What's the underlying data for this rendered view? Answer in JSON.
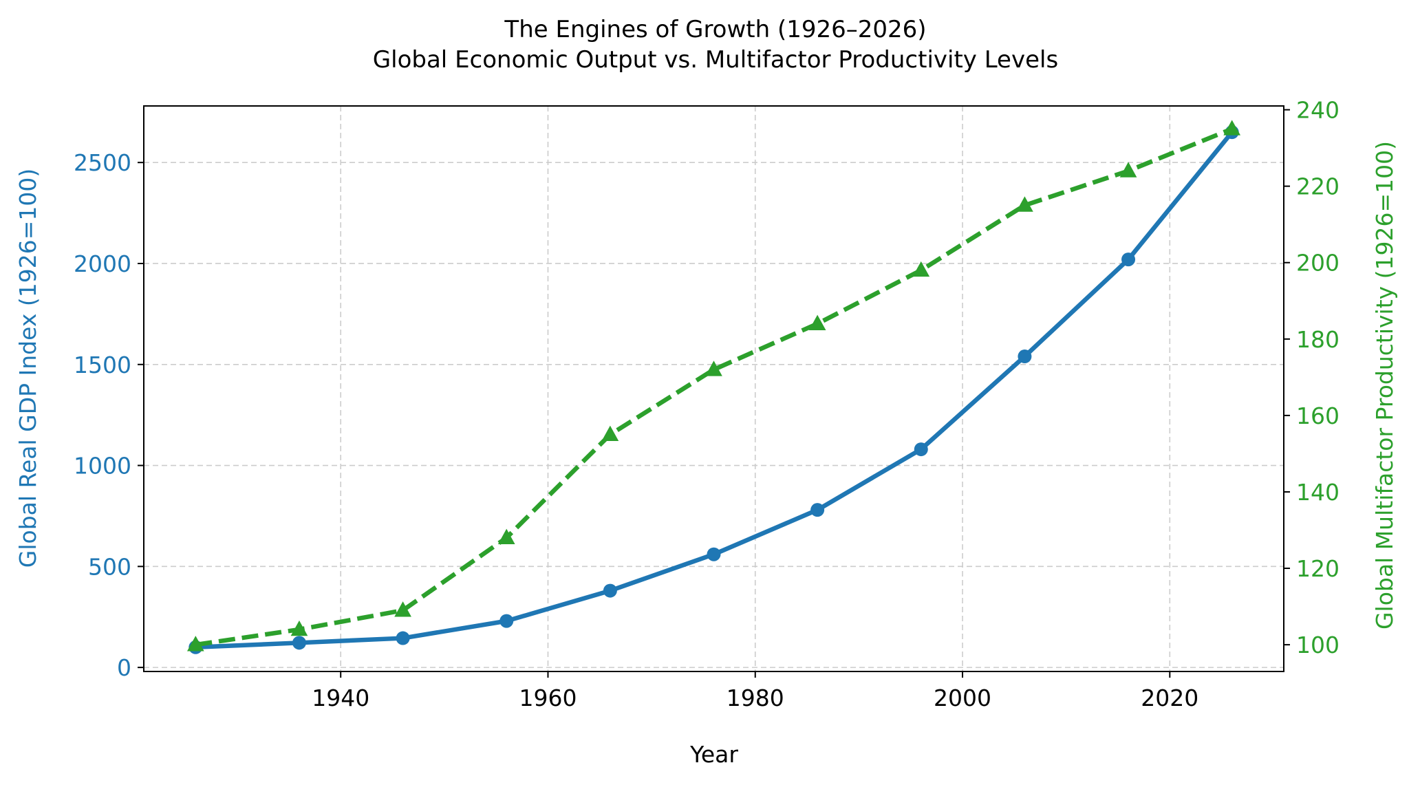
{
  "chart_data": {
    "type": "line",
    "title": "The Engines of Growth (1926–2026)",
    "subtitle": "Global Economic Output vs. Multifactor Productivity Levels",
    "xlabel": "Year",
    "ylabel_left": "Global Real GDP Index (1926=100)",
    "ylabel_right": "Global Multifactor Productivity (1926=100)",
    "x": [
      1926,
      1936,
      1946,
      1956,
      1966,
      1976,
      1986,
      1996,
      2006,
      2016,
      2026
    ],
    "xlim": [
      1921,
      2031
    ],
    "xticks": [
      1940,
      1960,
      1980,
      2000,
      2020
    ],
    "ylim_left": [
      -20,
      2780
    ],
    "yticks_left": [
      0,
      500,
      1000,
      1500,
      2000,
      2500
    ],
    "ylim_right": [
      93,
      241
    ],
    "yticks_right": [
      100,
      120,
      140,
      160,
      180,
      200,
      220,
      240
    ],
    "grid": true,
    "series": [
      {
        "axis": "left",
        "color": "#1f77b4",
        "line_style": "solid",
        "marker": "circle",
        "values": [
          100,
          122,
          145,
          230,
          380,
          560,
          780,
          1080,
          1540,
          2020,
          2650
        ]
      },
      {
        "axis": "right",
        "color": "#2ca02c",
        "line_style": "dashed",
        "marker": "triangle",
        "values": [
          100,
          104,
          109,
          128,
          155,
          172,
          184,
          198,
          215,
          224,
          235
        ]
      }
    ]
  }
}
